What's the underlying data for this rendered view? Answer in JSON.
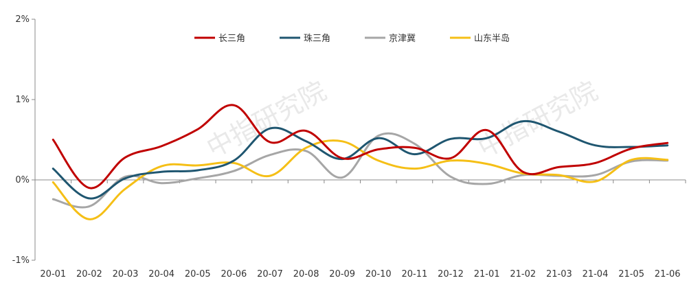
{
  "chart_data": {
    "type": "line",
    "categories": [
      "20-01",
      "20-02",
      "20-03",
      "20-04",
      "20-05",
      "20-06",
      "20-07",
      "20-08",
      "20-09",
      "20-10",
      "20-11",
      "20-12",
      "21-01",
      "21-02",
      "21-03",
      "21-04",
      "21-05",
      "21-06"
    ],
    "y_ticks": [
      "2%",
      "1%",
      "0%",
      "-1%"
    ],
    "ylim": [
      -1,
      2
    ],
    "grid": false,
    "legend_position": "top",
    "watermark": "中指研究院",
    "series": [
      {
        "name": "长三角",
        "color": "#c00000",
        "values": [
          0.5,
          -0.1,
          0.28,
          0.42,
          0.63,
          0.93,
          0.47,
          0.61,
          0.27,
          0.38,
          0.4,
          0.27,
          0.62,
          0.1,
          0.16,
          0.21,
          0.39,
          0.46
        ]
      },
      {
        "name": "珠三角",
        "color": "#1f5670",
        "values": [
          0.14,
          -0.23,
          0.02,
          0.1,
          0.12,
          0.24,
          0.64,
          0.48,
          0.26,
          0.52,
          0.32,
          0.51,
          0.52,
          0.73,
          0.6,
          0.43,
          0.41,
          0.43
        ]
      },
      {
        "name": "京津冀",
        "color": "#a6a6a6",
        "values": [
          -0.24,
          -0.33,
          0.04,
          -0.04,
          0.02,
          0.11,
          0.31,
          0.36,
          0.03,
          0.55,
          0.45,
          0.04,
          -0.05,
          0.06,
          0.05,
          0.06,
          0.23,
          0.24
        ]
      },
      {
        "name": "山东半岛",
        "color": "#f5bf16",
        "values": [
          -0.03,
          -0.49,
          -0.11,
          0.17,
          0.18,
          0.21,
          0.05,
          0.4,
          0.48,
          0.24,
          0.14,
          0.24,
          0.2,
          0.08,
          0.06,
          -0.02,
          0.25,
          0.25
        ]
      }
    ]
  }
}
